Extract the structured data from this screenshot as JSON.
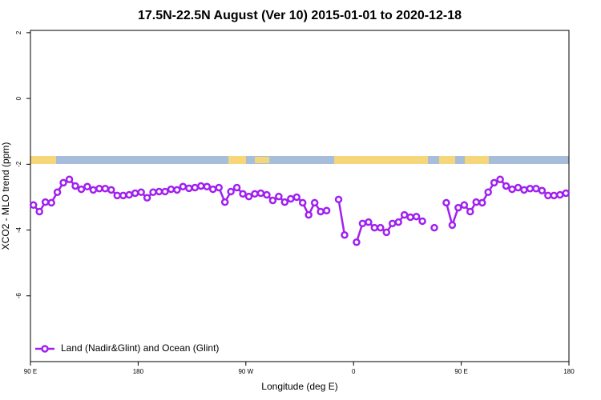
{
  "chart_data": {
    "type": "line",
    "title": "17.5N-22.5N August (Ver 10)   2015-01-01 to 2020-12-18",
    "x_label": "Longitude (deg E)",
    "y_label": "XCO2 - MLO trend (ppm)",
    "xlim": [
      90,
      540
    ],
    "ylim": [
      -8,
      2.07
    ],
    "xticks": [
      {
        "value": 90,
        "label": "90 E"
      },
      180,
      {
        "value": 270,
        "label": "90 W"
      },
      {
        "value": 360,
        "label": "0"
      },
      {
        "value": 450,
        "label": "90 E"
      },
      {
        "value": 540,
        "label": "180"
      }
    ],
    "yticks": [
      2,
      0,
      -2,
      -4,
      -6
    ],
    "legend": "bottom-left",
    "x": [
      92.5,
      97.5,
      102.5,
      107.5,
      112.5,
      117.5,
      122.5,
      127.5,
      132.5,
      137.5,
      142.5,
      147.5,
      152.5,
      157.5,
      162.5,
      167.5,
      172.5,
      177.5,
      182.5,
      187.5,
      192.5,
      197.5,
      202.5,
      207.5,
      212.5,
      217.5,
      222.5,
      227.5,
      232.5,
      237.5,
      242.5,
      247.5,
      252.5,
      257.5,
      262.5,
      267.5,
      272.5,
      277.5,
      282.5,
      287.5,
      292.5,
      297.5,
      302.5,
      307.5,
      312.5,
      317.5,
      322.5,
      327.5,
      332.5,
      337.5,
      342.5,
      347.5,
      352.5,
      357.5,
      362.5,
      367.5,
      372.5,
      377.5,
      382.5,
      387.5,
      392.5,
      397.5,
      402.5,
      407.5,
      412.5,
      417.5,
      422.5,
      427.5,
      432.5,
      437.5,
      442.5,
      447.5,
      452.5,
      457.5,
      462.5,
      467.5,
      472.5,
      477.5,
      482.5,
      487.5,
      492.5,
      497.5,
      502.5,
      507.5,
      512.5,
      517.5,
      522.5,
      527.5,
      532.5,
      537.5
    ],
    "series": [
      {
        "name": "Land (Nadir&Glint) and Ocean (Glint)",
        "color": "#a020f0",
        "values": [
          -3.24,
          -3.44,
          -3.15,
          -3.17,
          -2.85,
          -2.56,
          -2.46,
          -2.66,
          -2.76,
          -2.68,
          -2.78,
          -2.74,
          -2.74,
          -2.78,
          -2.95,
          -2.95,
          -2.93,
          -2.88,
          -2.85,
          -3.02,
          -2.85,
          -2.83,
          -2.83,
          -2.76,
          -2.78,
          -2.68,
          -2.73,
          -2.71,
          -2.66,
          -2.68,
          -2.76,
          -2.71,
          -3.15,
          -2.83,
          -2.71,
          -2.9,
          -2.98,
          -2.9,
          -2.88,
          -2.93,
          -3.1,
          -2.98,
          -3.15,
          -3.05,
          -3.0,
          -3.17,
          -3.54,
          -3.17,
          -3.44,
          -3.41,
          null,
          -3.07,
          -4.15,
          null,
          -4.37,
          -3.8,
          -3.76,
          -3.93,
          -3.93,
          -4.07,
          -3.8,
          -3.76,
          -3.54,
          -3.61,
          -3.59,
          -3.73,
          null,
          -3.93,
          null,
          -3.17,
          -3.85,
          -3.32,
          -3.24,
          -3.44,
          -3.15,
          -3.17,
          -2.85,
          -2.56,
          -2.46,
          -2.66,
          -2.76,
          -2.71,
          -2.78,
          -2.74,
          -2.74,
          -2.8,
          -2.95,
          -2.95,
          -2.93,
          -2.88
        ]
      }
    ]
  }
}
